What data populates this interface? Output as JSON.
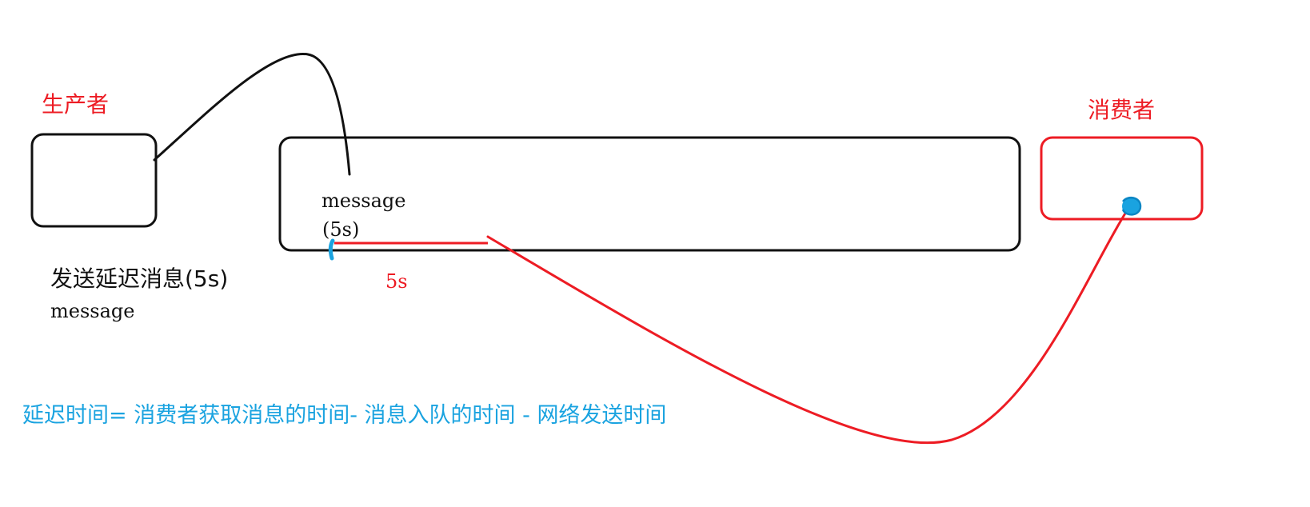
{
  "labels": {
    "producer": "生产者",
    "consumer": "消费者",
    "queue_message": "message",
    "queue_delay": "(5s)",
    "delay_interval": "5s",
    "send_action": "发送延迟消息(5s)",
    "send_message": "message",
    "formula": "延迟时间= 消费者获取消息的时间- 消息入队的时间 - 网络发送时间"
  },
  "colors": {
    "producer_accent": "#ed1c24",
    "consumer_accent": "#ed1c24",
    "formula": "#1aa3e0",
    "marker": "#1aa3e0",
    "outline": "#111111"
  }
}
